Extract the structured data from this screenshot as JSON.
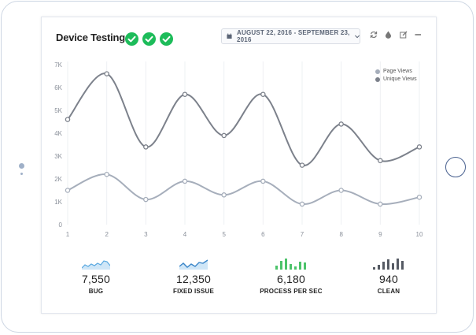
{
  "header": {
    "title": "Device Testing",
    "checks": 3,
    "date_range": "AUGUST 22, 2016 - SEPTEMBER 23, 2016",
    "icons": [
      "calendar-icon",
      "chevron-down-icon",
      "refresh-icon",
      "drop-icon",
      "edit-icon",
      "minimize-icon"
    ]
  },
  "colors": {
    "check_green": "#1dbc5a",
    "page_views": "#a6aebb",
    "unique_views": "#7c818b",
    "spark_blue": "#5aa9e0",
    "spark_green": "#4cc36a",
    "spark_dark": "#555a63"
  },
  "chart_data": {
    "type": "line",
    "x": [
      1,
      2,
      3,
      4,
      5,
      6,
      7,
      8,
      9,
      10
    ],
    "y_ticks": [
      "0",
      "1K",
      "2K",
      "3K",
      "4K",
      "5K",
      "6K",
      "7K"
    ],
    "ylim": [
      0,
      7000
    ],
    "grid": "vertical",
    "legend_position": "top-right",
    "series": [
      {
        "name": "Page Views",
        "values": [
          1500,
          2200,
          1100,
          1900,
          1300,
          1900,
          900,
          1500,
          900,
          1200
        ]
      },
      {
        "name": "Unique Views",
        "values": [
          4600,
          6600,
          3400,
          5700,
          3900,
          5700,
          2600,
          4400,
          2800,
          3400
        ]
      }
    ]
  },
  "stats": [
    {
      "value": "7,550",
      "label": "BUG",
      "spark": "area-blue"
    },
    {
      "value": "12,350",
      "label": "FIXED ISSUE",
      "spark": "area-blue"
    },
    {
      "value": "6,180",
      "label": "PROCESS PER SEC",
      "spark": "bars-green"
    },
    {
      "value": "940",
      "label": "CLEAN",
      "spark": "bars-dark"
    }
  ]
}
